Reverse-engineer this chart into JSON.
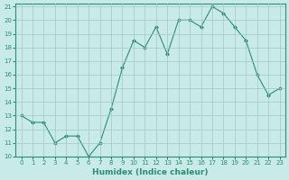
{
  "xlabel": "Humidex (Indice chaleur)",
  "x": [
    0,
    1,
    2,
    3,
    4,
    5,
    6,
    7,
    8,
    9,
    10,
    11,
    12,
    13,
    14,
    15,
    16,
    17,
    18,
    19,
    20,
    21,
    22,
    23
  ],
  "y": [
    13,
    12.5,
    12.5,
    11,
    11.5,
    11.5,
    10,
    11,
    13.5,
    16.5,
    18.5,
    18,
    19.5,
    17.5,
    20.0,
    20.0,
    19.5,
    21,
    20.5,
    19.5,
    18.5,
    16,
    14.5,
    15
  ],
  "ylim": [
    10,
    21
  ],
  "yticks": [
    10,
    11,
    12,
    13,
    14,
    15,
    16,
    17,
    18,
    19,
    20,
    21
  ],
  "xticks": [
    0,
    1,
    2,
    3,
    4,
    5,
    6,
    7,
    8,
    9,
    10,
    11,
    12,
    13,
    14,
    15,
    16,
    17,
    18,
    19,
    20,
    21,
    22,
    23
  ],
  "line_color": "#2e8b7a",
  "marker_color": "#2e8b7a",
  "bg_color": "#c8eae8",
  "grid_color": "#a0c8c5",
  "axes_color": "#2e8b7a",
  "tick_color": "#2e8b7a",
  "xlabel_color": "#2e8b7a",
  "tick_fontsize": 5.0,
  "xlabel_fontsize": 6.5
}
